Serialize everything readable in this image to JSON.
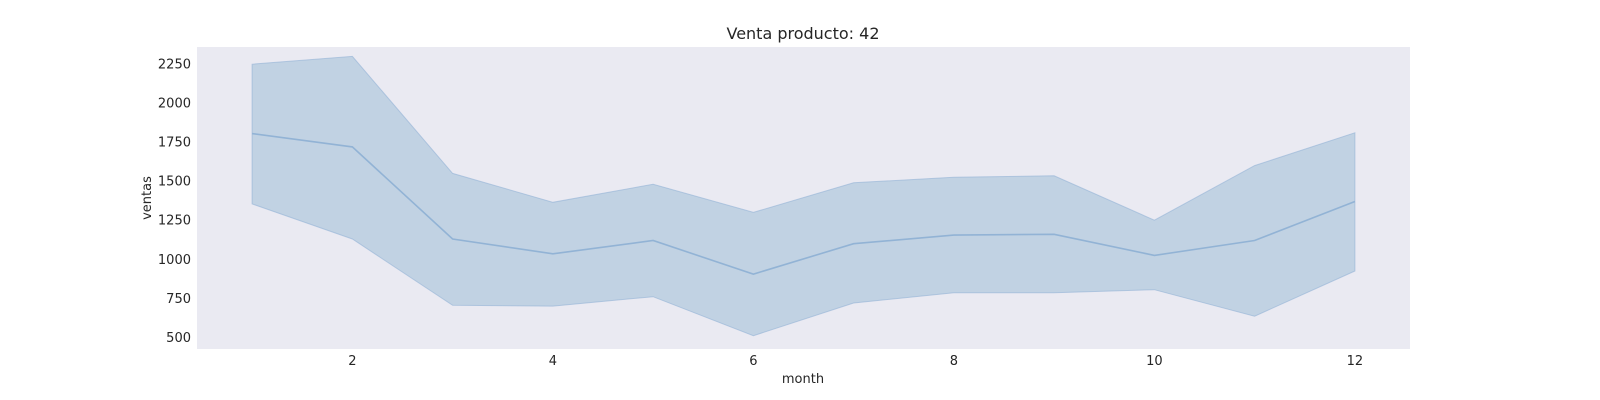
{
  "chart_data": {
    "type": "line",
    "title": "Venta producto: 42",
    "xlabel": "month",
    "ylabel": "ventas",
    "x": [
      1,
      2,
      3,
      4,
      5,
      6,
      7,
      8,
      9,
      10,
      11,
      12
    ],
    "series": [
      {
        "values": [
          1805,
          1720,
          1130,
          1035,
          1120,
          905,
          1100,
          1155,
          1160,
          1025,
          1120,
          1370
        ],
        "lower": [
          1355,
          1130,
          705,
          700,
          760,
          510,
          720,
          785,
          785,
          805,
          635,
          925
        ],
        "upper": [
          2250,
          2300,
          1550,
          1365,
          1480,
          1300,
          1490,
          1525,
          1535,
          1250,
          1600,
          1810
        ]
      }
    ],
    "xlim": [
      0.45,
      12.55
    ],
    "ylim": [
      425,
      2360
    ],
    "xticks": [
      2,
      4,
      6,
      8,
      10,
      12
    ],
    "yticks": [
      500,
      750,
      1000,
      1250,
      1500,
      1750,
      2000,
      2250
    ],
    "grid": false,
    "colors": {
      "background": "#eaeaf2",
      "line": "#92b3d5",
      "band": "#c1d2e3"
    }
  }
}
